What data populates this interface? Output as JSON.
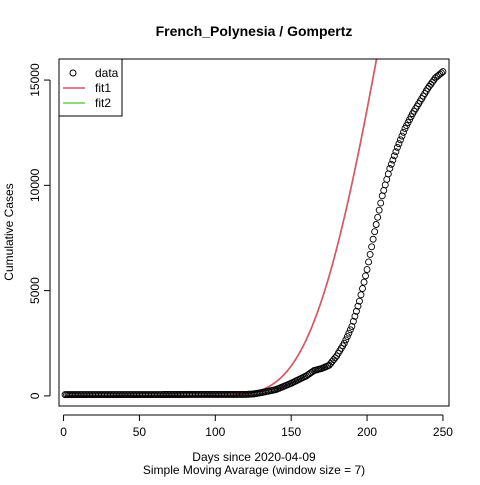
{
  "chart_data": {
    "type": "scatter",
    "title": "French_Polynesia / Gompertz",
    "xlabel": "Days since 2020-04-09",
    "subtitle": "Simple Moving Avarage (window size = 7)",
    "ylabel": "Cumulative Cases",
    "xlim": [
      -3,
      254
    ],
    "ylim": [
      -480,
      16000
    ],
    "xticks": [
      0,
      50,
      100,
      150,
      200,
      250
    ],
    "yticks": [
      0,
      5000,
      10000,
      15000
    ],
    "legend": {
      "position": "top-left",
      "entries": [
        {
          "label": "data",
          "marker": "circle",
          "color": "#000000"
        },
        {
          "label": "fit1",
          "marker": "line",
          "color": "#DF536B"
        },
        {
          "label": "fit2",
          "marker": "line",
          "color": "#61D04F"
        }
      ]
    },
    "series": [
      {
        "name": "data",
        "kind": "points",
        "color": "#000000",
        "x_start": 1,
        "x_end": 250,
        "anchors": [
          [
            1,
            60
          ],
          [
            60,
            65
          ],
          [
            120,
            70
          ],
          [
            125,
            90
          ],
          [
            130,
            150
          ],
          [
            140,
            300
          ],
          [
            150,
            600
          ],
          [
            160,
            950
          ],
          [
            165,
            1200
          ],
          [
            170,
            1300
          ],
          [
            175,
            1450
          ],
          [
            180,
            1900
          ],
          [
            185,
            2500
          ],
          [
            190,
            3300
          ],
          [
            195,
            4500
          ],
          [
            200,
            6000
          ],
          [
            205,
            7800
          ],
          [
            210,
            9500
          ],
          [
            215,
            10800
          ],
          [
            220,
            11800
          ],
          [
            225,
            12700
          ],
          [
            230,
            13400
          ],
          [
            235,
            14000
          ],
          [
            240,
            14600
          ],
          [
            245,
            15100
          ],
          [
            250,
            15400
          ]
        ]
      },
      {
        "name": "fit1",
        "kind": "line",
        "color": "#DF536B",
        "model": "gompertz",
        "params": {
          "a": 60000,
          "b": 60,
          "c": 0.0185
        },
        "x_start": 1,
        "x_end": 252
      },
      {
        "name": "fit2",
        "kind": "line",
        "color": "#61D04F",
        "model": "gompertz",
        "params": {
          "a": 60000,
          "b": 60,
          "c": 0.0185
        },
        "x_start": 1,
        "x_end": 252
      }
    ]
  }
}
